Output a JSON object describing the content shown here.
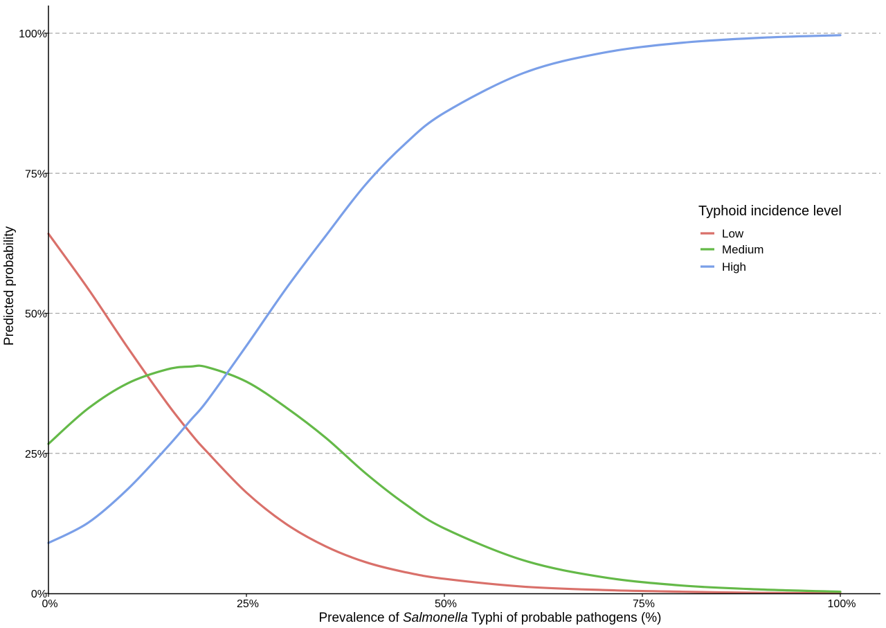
{
  "chart_data": {
    "type": "line",
    "xlabel_parts": [
      "Prevalence of ",
      "Salmonella",
      " Typhi of probable pathogens (%)"
    ],
    "ylabel": "Predicted probability",
    "legend_title": "Typhoid incidence level",
    "legend_position": "right",
    "x_ticks": [
      "0%",
      "25%",
      "50%",
      "75%",
      "100%"
    ],
    "y_ticks": [
      "0%",
      "25%",
      "50%",
      "75%",
      "100%"
    ],
    "xlim": [
      0,
      100
    ],
    "ylim": [
      0,
      100
    ],
    "grid": "horizontal dashed",
    "x": [
      0,
      5,
      10,
      15,
      18,
      20,
      25,
      30,
      35,
      40,
      45,
      50,
      60,
      70,
      80,
      90,
      100
    ],
    "series": [
      {
        "name": "Low",
        "color": "#d9706a",
        "values": [
          64.2,
          54.4,
          43.9,
          33.9,
          28.5,
          25.3,
          18.0,
          12.4,
          8.4,
          5.6,
          3.8,
          2.6,
          1.2,
          0.6,
          0.3,
          0.1,
          0.05
        ]
      },
      {
        "name": "Medium",
        "color": "#64b948",
        "values": [
          26.7,
          33.0,
          37.5,
          40.0,
          40.5,
          40.4,
          37.8,
          33.2,
          27.8,
          21.5,
          16.0,
          11.6,
          5.9,
          2.9,
          1.4,
          0.7,
          0.3
        ]
      },
      {
        "name": "High",
        "color": "#7a9fe8",
        "values": [
          9.0,
          12.6,
          18.6,
          26.1,
          31.0,
          34.3,
          44.2,
          54.4,
          63.8,
          72.9,
          80.2,
          85.8,
          92.9,
          96.5,
          98.3,
          99.2,
          99.65
        ]
      }
    ]
  }
}
